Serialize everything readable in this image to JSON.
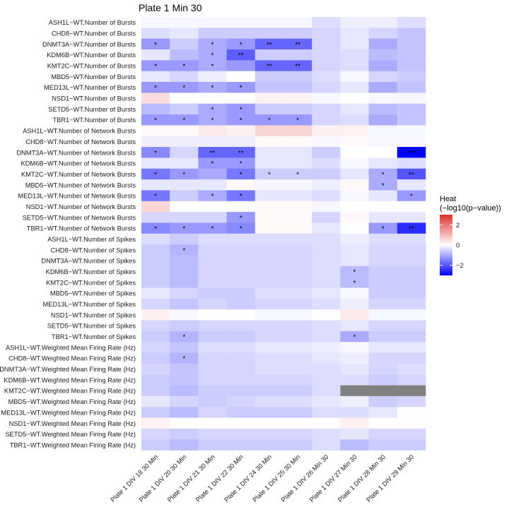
{
  "chart_data": {
    "type": "heatmap",
    "title": "Plate 1 Min 30",
    "legend": {
      "title_line1": "Heat",
      "title_line2": "(−log10(p−value))",
      "ticks": [
        2,
        0,
        -2
      ],
      "tick_labels": [
        "2",
        "0",
        "−2"
      ],
      "range": [
        -3,
        3
      ],
      "low_color": "#0000ff",
      "mid_color": "#ffffff",
      "high_color": "#e0302a",
      "placement": "right"
    },
    "na_color": "#808080",
    "columns": [
      "Plate 1 DIV 18 30 Min",
      "Plate 1 DIV 20 30 Min",
      "Plate 1 DIV 21 30 Min",
      "Plate 1 DIV 22 30 Min",
      "Plate 1 DIV 24 30 Min",
      "Plate 1 DIV 25 30 Min",
      "Plate 1 DIV 26 Min 30",
      "Plate 1 DIV 27 Min 30",
      "Plate 1 DIV 28 Min 30",
      "Plate 1 DIV 29 Min 30"
    ],
    "rows": [
      "ASH1L−WT.Number of Bursts",
      "CHD8−WT.Number of Bursts",
      "DNMT3A−WT.Number of Bursts",
      "KDM6B−WT.Number of Bursts",
      "KMT2C−WT.Number of Bursts",
      "MBD5−WT.Number of Bursts",
      "MED13L−WT.Number of Bursts",
      "NSD1−WT.Number of Bursts",
      "SETD5−WT.Number of Bursts",
      "TBR1−WT.Number of Bursts",
      "ASH1L−WT.Number of Network Bursts",
      "CHD8−WT.Number of Network Bursts",
      "DNMT3A−WT.Number of Network Bursts",
      "KDM6B−WT.Number of Network Bursts",
      "KMT2C−WT.Number of Network Bursts",
      "MBD5−WT.Number of Network Bursts",
      "MED13L−WT.Number of Network Bursts",
      "NSD1−WT.Number of Network Bursts",
      "SETD5−WT.Number of Network Bursts",
      "TBR1−WT.Number of Network Bursts",
      "ASH1L−WT.Number of Spikes",
      "CHD8−WT.Number of Spikes",
      "DNMT3A−WT.Number of Spikes",
      "KDM6B−WT.Number of Spikes",
      "KMT2C−WT.Number of Spikes",
      "MBD5−WT.Number of Spikes",
      "MED13L−WT.Number of Spikes",
      "NSD1−WT.Number of Spikes",
      "SETD5−WT.Number of Spikes",
      "TBR1−WT.Number of Spikes",
      "ASH1L−WT.Weighted Mean Firing Rate (Hz)",
      "CHD8−WT.Weighted Mean Firing Rate (Hz)",
      "DNMT3A−WT.Weighted Mean Firing Rate (Hz)",
      "KDM6B−WT.Weighted Mean Firing Rate (Hz)",
      "KMT2C−WT.Weighted Mean Firing Rate (Hz)",
      "MBD5−WT.Weighted Mean Firing Rate (Hz)",
      "MED13L−WT.Weighted Mean Firing Rate (Hz)",
      "NSD1−WT.Weighted Mean Firing Rate (Hz)",
      "SETD5−WT.Weighted Mean Firing Rate (Hz)",
      "TBR1−WT.Weighted Mean Firing Rate (Hz)"
    ],
    "values": [
      [
        -0.1,
        -0.1,
        -0.1,
        -0.1,
        -0.1,
        -0.1,
        -0.4,
        -0.2,
        -0.2,
        -0.4
      ],
      [
        -0.4,
        -0.3,
        -0.6,
        -0.6,
        -0.6,
        -0.6,
        -0.5,
        -0.3,
        -0.5,
        -0.7
      ],
      [
        -1.2,
        -0.6,
        -1.0,
        -1.2,
        -1.8,
        -1.8,
        -0.5,
        -0.3,
        -1.0,
        -0.7
      ],
      [
        -0.3,
        -0.8,
        -1.0,
        -1.9,
        -0.6,
        -0.6,
        -0.5,
        -0.4,
        -0.8,
        -0.7
      ],
      [
        -1.2,
        -1.2,
        -1.0,
        -1.2,
        -1.8,
        -1.8,
        -0.5,
        -0.4,
        -1.0,
        -0.7
      ],
      [
        -0.3,
        -0.5,
        -0.2,
        0.0,
        -0.6,
        -0.6,
        -0.4,
        -0.1,
        -0.5,
        -0.6
      ],
      [
        -1.2,
        -1.2,
        -1.0,
        -1.2,
        -0.7,
        -0.7,
        -0.5,
        -0.3,
        -1.0,
        -0.7
      ],
      [
        0.5,
        0.0,
        0.0,
        0.0,
        0.2,
        0.2,
        -0.1,
        0.0,
        -0.1,
        -0.1
      ],
      [
        -0.8,
        -0.6,
        -1.0,
        -1.2,
        -0.6,
        -0.6,
        -0.5,
        -0.3,
        -0.8,
        -0.7
      ],
      [
        -1.2,
        -1.2,
        -1.0,
        -1.2,
        -1.2,
        -1.2,
        -0.5,
        -0.4,
        -1.0,
        -0.7
      ],
      [
        0.1,
        0.1,
        0.3,
        0.2,
        0.6,
        0.6,
        0.2,
        0.2,
        -0.1,
        -0.1
      ],
      [
        -0.2,
        -0.2,
        -0.2,
        -0.2,
        0.1,
        0.1,
        -0.1,
        0.1,
        -0.1,
        -0.1
      ],
      [
        -1.4,
        -0.5,
        -1.8,
        -1.8,
        -0.3,
        -0.3,
        -0.6,
        0.0,
        0.0,
        -3.0
      ],
      [
        -0.3,
        -0.3,
        -1.2,
        -1.2,
        -0.3,
        -0.3,
        -0.4,
        -0.1,
        -0.3,
        -0.4
      ],
      [
        -1.6,
        -1.2,
        -1.0,
        -1.6,
        -0.6,
        -0.6,
        -0.6,
        -0.3,
        -1.0,
        -2.0
      ],
      [
        -0.3,
        -0.3,
        -0.3,
        0.1,
        -0.1,
        -0.1,
        -0.2,
        0.1,
        -1.0,
        -0.3
      ],
      [
        -1.6,
        -0.6,
        -1.0,
        -1.6,
        -0.3,
        -0.3,
        -0.4,
        -0.1,
        -0.3,
        -1.2
      ],
      [
        0.6,
        0.0,
        0.0,
        0.0,
        0.1,
        0.1,
        -0.1,
        0.0,
        0.0,
        0.0
      ],
      [
        -0.5,
        -0.5,
        -0.5,
        -1.2,
        0.1,
        0.1,
        -0.5,
        0.1,
        -0.3,
        -0.3
      ],
      [
        -1.4,
        -1.2,
        -1.2,
        -1.4,
        0.1,
        0.1,
        -0.3,
        0.0,
        -1.2,
        -2.5
      ],
      [
        -0.4,
        -0.6,
        -0.4,
        -0.4,
        -0.4,
        -0.4,
        -0.4,
        -0.2,
        -0.4,
        -0.4
      ],
      [
        -0.6,
        -0.9,
        -0.5,
        -0.5,
        -0.5,
        -0.5,
        -0.4,
        -0.3,
        -0.5,
        -0.5
      ],
      [
        -0.6,
        -0.8,
        -0.5,
        -0.5,
        -0.5,
        -0.5,
        -0.4,
        -0.3,
        -0.5,
        -0.5
      ],
      [
        -0.6,
        -0.8,
        -0.5,
        -0.5,
        -0.5,
        -0.5,
        -0.4,
        -0.8,
        -0.6,
        -0.6
      ],
      [
        -0.6,
        -0.8,
        -0.5,
        -0.5,
        -0.5,
        -0.5,
        -0.4,
        -0.8,
        -0.6,
        -0.6
      ],
      [
        -0.3,
        -0.5,
        -0.6,
        -0.6,
        -0.4,
        -0.4,
        -0.3,
        -0.1,
        -0.6,
        -0.6
      ],
      [
        -0.5,
        -0.7,
        -0.5,
        -0.6,
        -0.5,
        -0.5,
        -0.4,
        -0.2,
        -0.5,
        -0.5
      ],
      [
        0.2,
        -0.1,
        0.0,
        0.0,
        -0.1,
        -0.1,
        0.0,
        0.3,
        -0.1,
        -0.1
      ],
      [
        -0.5,
        -0.6,
        -0.5,
        -0.5,
        -0.5,
        -0.5,
        -0.4,
        -0.3,
        -0.5,
        -0.5
      ],
      [
        -0.6,
        -0.9,
        -0.6,
        -0.6,
        -0.5,
        -0.5,
        -0.4,
        -1.0,
        -0.6,
        -0.6
      ],
      [
        -0.5,
        -0.7,
        -0.4,
        -0.4,
        -0.3,
        -0.3,
        -0.2,
        -0.1,
        -0.3,
        -0.3
      ],
      [
        -0.6,
        -0.9,
        -0.5,
        -0.5,
        -0.4,
        -0.4,
        -0.3,
        -0.2,
        -0.5,
        -0.5
      ],
      [
        -0.5,
        -0.7,
        -0.5,
        -0.5,
        -0.4,
        -0.4,
        -0.4,
        -0.3,
        -0.5,
        -0.4
      ],
      [
        -0.6,
        -0.7,
        -0.5,
        -0.5,
        -0.5,
        -0.5,
        -0.4,
        -0.4,
        -0.6,
        -0.5
      ],
      [
        -0.6,
        -0.8,
        -0.6,
        -0.6,
        -0.6,
        -0.6,
        -0.4,
        null,
        null,
        null
      ],
      [
        -0.3,
        -0.5,
        -0.6,
        -0.5,
        -0.4,
        -0.4,
        -0.3,
        -0.2,
        -0.6,
        -0.5
      ],
      [
        -0.6,
        -0.8,
        -0.5,
        -0.6,
        -0.6,
        -0.6,
        -0.4,
        -0.4,
        -0.3,
        0.0
      ],
      [
        0.2,
        0.0,
        0.0,
        0.0,
        0.0,
        0.0,
        0.0,
        0.2,
        0.0,
        0.0
      ],
      [
        -0.5,
        -0.6,
        -0.5,
        -0.5,
        -0.5,
        -0.5,
        -0.4,
        -0.3,
        -0.5,
        -0.5
      ],
      [
        -0.6,
        -0.8,
        -0.6,
        -0.6,
        -0.6,
        -0.6,
        -0.4,
        -0.8,
        -0.6,
        -0.6
      ]
    ],
    "significance": [
      [
        "",
        "",
        "",
        "",
        "",
        "",
        "",
        "",
        "",
        ""
      ],
      [
        "",
        "",
        "",
        "",
        "",
        "",
        "",
        "",
        "",
        ""
      ],
      [
        "*",
        "",
        "*",
        "*",
        "**",
        "**",
        "",
        "",
        "",
        ""
      ],
      [
        "",
        "",
        "*",
        "**",
        "",
        "",
        "",
        "",
        "",
        ""
      ],
      [
        "*",
        "*",
        "*",
        "",
        "**",
        "**",
        "",
        "",
        "",
        ""
      ],
      [
        "",
        "",
        "",
        "",
        "",
        "",
        "",
        "",
        "",
        ""
      ],
      [
        "*",
        "*",
        "*",
        "*",
        "",
        "",
        "",
        "",
        "",
        ""
      ],
      [
        "",
        "",
        "",
        "",
        "",
        "",
        "",
        "",
        "",
        ""
      ],
      [
        "",
        "",
        "*",
        "*",
        "",
        "",
        "",
        "",
        "",
        ""
      ],
      [
        "*",
        "*",
        "*",
        "*",
        "*",
        "*",
        "",
        "",
        "",
        ""
      ],
      [
        "",
        "",
        "",
        "",
        "",
        "",
        "",
        "",
        "",
        ""
      ],
      [
        "",
        "",
        "",
        "",
        "",
        "",
        "",
        "",
        "",
        ""
      ],
      [
        "*",
        "",
        "**",
        "**",
        "",
        "",
        "",
        "",
        "",
        "***"
      ],
      [
        "",
        "",
        "*",
        "*",
        "",
        "",
        "",
        "",
        "",
        ""
      ],
      [
        "*",
        "*",
        "",
        "*",
        "*",
        "*",
        "",
        "",
        "*",
        "**"
      ],
      [
        "",
        "",
        "",
        "",
        "",
        "",
        "",
        "",
        "*",
        ""
      ],
      [
        "*",
        "",
        "*",
        "*",
        "",
        "",
        "",
        "",
        "",
        "*"
      ],
      [
        "",
        "",
        "",
        "",
        "",
        "",
        "",
        "",
        "",
        ""
      ],
      [
        "",
        "",
        "",
        "*",
        "",
        "",
        "",
        "",
        "",
        ""
      ],
      [
        "*",
        "*",
        "*",
        "*",
        "",
        "",
        "",
        "",
        "*",
        "**"
      ],
      [
        "",
        "",
        "",
        "",
        "",
        "",
        "",
        "",
        "",
        ""
      ],
      [
        "",
        "*",
        "",
        "",
        "",
        "",
        "",
        "",
        "",
        ""
      ],
      [
        "",
        "",
        "",
        "",
        "",
        "",
        "",
        "",
        "",
        ""
      ],
      [
        "",
        "",
        "",
        "",
        "",
        "",
        "",
        "*",
        "",
        ""
      ],
      [
        "",
        "",
        "",
        "",
        "",
        "",
        "",
        "*",
        "",
        ""
      ],
      [
        "",
        "",
        "",
        "",
        "",
        "",
        "",
        "",
        "",
        ""
      ],
      [
        "",
        "",
        "",
        "",
        "",
        "",
        "",
        "",
        "",
        ""
      ],
      [
        "",
        "",
        "",
        "",
        "",
        "",
        "",
        "",
        "",
        ""
      ],
      [
        "",
        "",
        "",
        "",
        "",
        "",
        "",
        "",
        "",
        ""
      ],
      [
        "",
        "*",
        "",
        "",
        "",
        "",
        "",
        "*",
        "",
        ""
      ],
      [
        "",
        "",
        "",
        "",
        "",
        "",
        "",
        "",
        "",
        ""
      ],
      [
        "",
        "*",
        "",
        "",
        "",
        "",
        "",
        "",
        "",
        ""
      ],
      [
        "",
        "",
        "",
        "",
        "",
        "",
        "",
        "",
        "",
        ""
      ],
      [
        "",
        "",
        "",
        "",
        "",
        "",
        "",
        "",
        "",
        ""
      ],
      [
        "",
        "",
        "",
        "",
        "",
        "",
        "",
        "",
        "",
        ""
      ],
      [
        "",
        "",
        "",
        "",
        "",
        "",
        "",
        "",
        "",
        ""
      ],
      [
        "",
        "",
        "",
        "",
        "",
        "",
        "",
        "",
        "",
        ""
      ],
      [
        "",
        "",
        "",
        "",
        "",
        "",
        "",
        "",
        "",
        ""
      ],
      [
        "",
        "",
        "",
        "",
        "",
        "",
        "",
        "",
        "",
        ""
      ],
      [
        "",
        "",
        "",
        "",
        "",
        "",
        "",
        "",
        "",
        ""
      ]
    ]
  }
}
